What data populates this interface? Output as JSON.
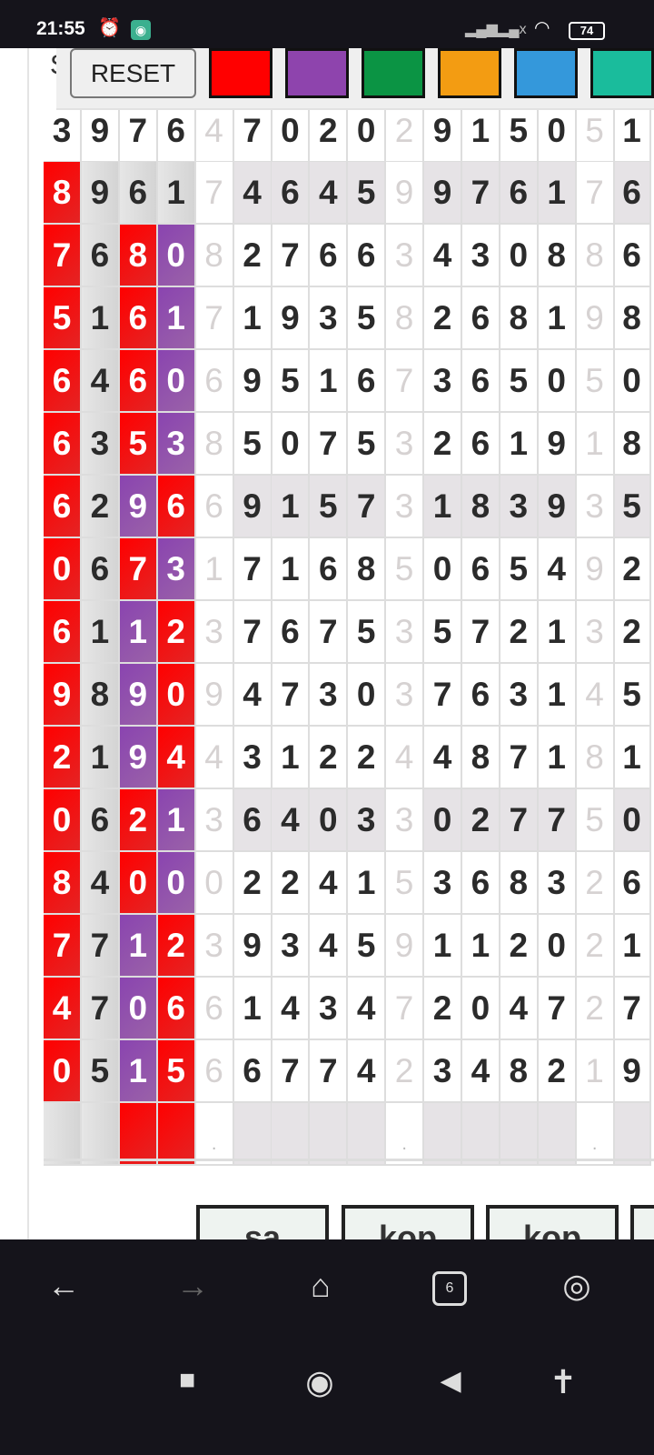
{
  "status_bar": {
    "time": "21:55",
    "battery": "74"
  },
  "toolbar": {
    "reset_label": "RESET",
    "partial_text": "S",
    "swatches": [
      "#ff0000",
      "#8e44ad",
      "#0b9444",
      "#f39c12",
      "#3498db",
      "#1abc9c"
    ]
  },
  "colors": {
    "R": "#ff0000",
    "P": "#8e44ad",
    "G": "#dcdcdc"
  },
  "grid": {
    "faint_columns": [
      4,
      9,
      14
    ],
    "shaded_rows": [
      1,
      6,
      11,
      16
    ],
    "rows": [
      {
        "digits": "3976470202915051",
        "marks": "...."
      },
      {
        "digits": "8961746459976176",
        "marks": "RGGG"
      },
      {
        "digits": "7680827663430886",
        "marks": "RGRP"
      },
      {
        "digits": "5161719358268198",
        "marks": "RGRP"
      },
      {
        "digits": "6460695167365050",
        "marks": "RGRP"
      },
      {
        "digits": "6353850753261918",
        "marks": "RGRP"
      },
      {
        "digits": "6296691573183935",
        "marks": "RGPR"
      },
      {
        "digits": "0673171685065492",
        "marks": "RGRP"
      },
      {
        "digits": "6112376753572132",
        "marks": "RGPR"
      },
      {
        "digits": "9890947303763145",
        "marks": "RGPR"
      },
      {
        "digits": "2194431224487181",
        "marks": "RGPR"
      },
      {
        "digits": "0621364033027750",
        "marks": "RGRP"
      },
      {
        "digits": "8400022415368326",
        "marks": "RGRP"
      },
      {
        "digits": "7712393459112021",
        "marks": "RGPR"
      },
      {
        "digits": "4706614347204727",
        "marks": "RGPR"
      },
      {
        "digits": "0515667742348219",
        "marks": "RGPR"
      },
      {
        "digits": "    .    .    . ",
        "marks": "GGRR"
      }
    ]
  },
  "bottom_buttons": [
    "sa",
    "kop",
    "kop"
  ],
  "browser_nav": {
    "tab_count": "6"
  }
}
